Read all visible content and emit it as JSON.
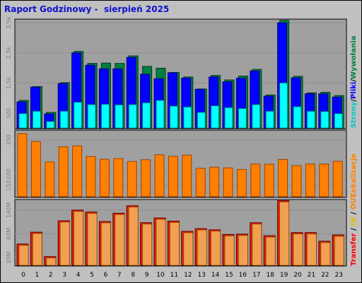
{
  "window": {
    "title": "Raport Godzinowy -  sierpień 2025"
  },
  "chart_data": [
    {
      "type": "bar",
      "categories": [
        "0",
        "1",
        "2",
        "3",
        "4",
        "5",
        "6",
        "7",
        "8",
        "9",
        "10",
        "11",
        "12",
        "13",
        "14",
        "15",
        "16",
        "17",
        "18",
        "19",
        "20",
        "21",
        "22",
        "23"
      ],
      "y_tick_labels": [
        "500",
        "1,5k",
        "2,5k",
        "3,5k"
      ],
      "ylim": [
        0,
        3600
      ],
      "legend": [
        "Strony",
        "Pliki",
        "Wywołania"
      ],
      "series": [
        {
          "name": "Wywołania",
          "color": "#008040",
          "values": [
            920,
            1380,
            520,
            1510,
            2550,
            2150,
            2160,
            2150,
            2400,
            2050,
            1990,
            1850,
            1700,
            1300,
            1750,
            1600,
            1730,
            1950,
            1100,
            3580,
            1720,
            1170,
            1190,
            1080
          ]
        },
        {
          "name": "Pliki",
          "color": "#0000ff",
          "values": [
            870,
            1360,
            470,
            1480,
            2500,
            2090,
            1970,
            1970,
            2350,
            1790,
            1640,
            1840,
            1660,
            1290,
            1700,
            1540,
            1660,
            1900,
            1060,
            3500,
            1670,
            1140,
            1140,
            1030
          ]
        },
        {
          "name": "Strony",
          "color": "#00ffff",
          "values": [
            480,
            560,
            220,
            560,
            860,
            780,
            790,
            770,
            780,
            840,
            920,
            730,
            700,
            520,
            740,
            680,
            650,
            780,
            560,
            1500,
            710,
            560,
            550,
            480
          ]
        }
      ]
    },
    {
      "type": "bar",
      "categories": [
        "0",
        "1",
        "2",
        "3",
        "4",
        "5",
        "6",
        "7",
        "8",
        "9",
        "10",
        "11",
        "12",
        "13",
        "14",
        "15",
        "16",
        "17",
        "18",
        "19",
        "20",
        "21",
        "22",
        "23"
      ],
      "y_tick_labels": [
        "150",
        "200",
        "350"
      ],
      "ylim": [
        100,
        390
      ],
      "legend": [
        "Lokalizacje"
      ],
      "series": [
        {
          "name": "Lokalizacje",
          "color": "#ff8000",
          "values": [
            378,
            343,
            253,
            320,
            324,
            277,
            265,
            268,
            255,
            263,
            285,
            278,
            283,
            225,
            230,
            227,
            220,
            244,
            243,
            264,
            237,
            244,
            244,
            256
          ]
        }
      ]
    },
    {
      "type": "bar",
      "categories": [
        "0",
        "1",
        "2",
        "3",
        "4",
        "5",
        "6",
        "7",
        "8",
        "9",
        "10",
        "11",
        "12",
        "13",
        "14",
        "15",
        "16",
        "17",
        "18",
        "19",
        "20",
        "21",
        "22",
        "23"
      ],
      "y_tick_labels": [
        "20M",
        "80M",
        "140M"
      ],
      "ylim": [
        0,
        165
      ],
      "legend": [
        "Transfer",
        "IN",
        "OUT"
      ],
      "series": [
        {
          "name": "Transfer",
          "color": "#ff0000",
          "values": [
            54,
            84,
            22,
            113,
            140,
            135,
            111,
            132,
            151,
            108,
            120,
            112,
            86,
            93,
            90,
            78,
            79,
            108,
            75,
            164,
            83,
            83,
            61,
            77
          ]
        }
      ]
    }
  ]
}
